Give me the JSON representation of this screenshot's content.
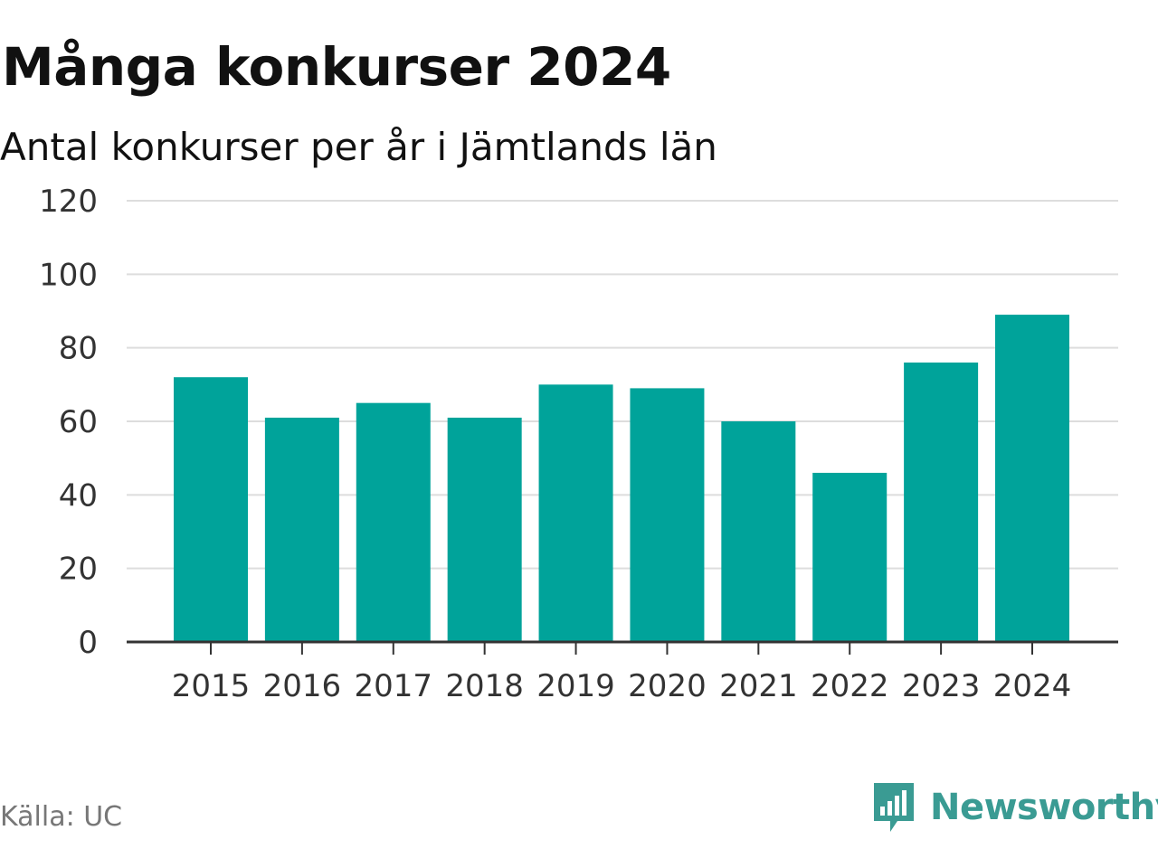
{
  "chart_data": {
    "type": "bar",
    "title": "Många konkurser 2024",
    "subtitle": "Antal konkurser per år i Jämtlands län",
    "categories": [
      "2015",
      "2016",
      "2017",
      "2018",
      "2019",
      "2020",
      "2021",
      "2022",
      "2023",
      "2024"
    ],
    "values": [
      72,
      61,
      65,
      61,
      70,
      69,
      60,
      46,
      76,
      89
    ],
    "ylim": [
      0,
      120
    ],
    "yticks": [
      0,
      20,
      40,
      60,
      80,
      100,
      120
    ],
    "ytick_labels": [
      "0",
      "20",
      "40",
      "60",
      "80",
      "100",
      "120"
    ],
    "grid": true,
    "xlabel": "",
    "ylabel": ""
  },
  "colors": {
    "bar": "#00a39a",
    "grid": "#dddddd",
    "axis": "#333333",
    "brand": "#3a9b93"
  },
  "footer": {
    "source": "Källa: UC",
    "brand": "Newsworthy",
    "brand_icon": "newsworthy-logo-icon"
  }
}
